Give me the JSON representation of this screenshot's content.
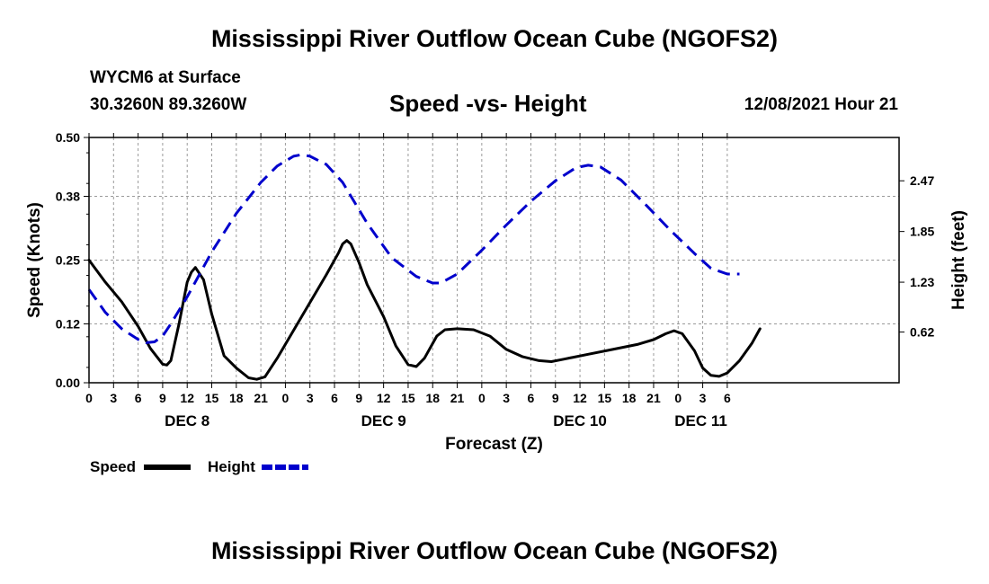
{
  "header": {
    "title": "Mississippi River Outflow Ocean Cube (NGOFS2)",
    "station": "WYCM6 at Surface",
    "coords": "30.3260N  89.3260W",
    "subtitle": "Speed -vs- Height",
    "datetime": "12/08/2021 Hour 21"
  },
  "footer": {
    "title": "Mississippi River Outflow Ocean Cube (NGOFS2)"
  },
  "chart_data": {
    "type": "line",
    "title": "Speed -vs- Height",
    "xlabel": "Forecast (Z)",
    "ylabel_left": "Speed (Knots)",
    "ylabel_right": "Height (feet)",
    "x_range_hours": [
      0,
      99
    ],
    "x_ticks": [
      {
        "h": 0,
        "label": "0"
      },
      {
        "h": 3,
        "label": "3"
      },
      {
        "h": 6,
        "label": "6"
      },
      {
        "h": 9,
        "label": "9"
      },
      {
        "h": 12,
        "label": "12"
      },
      {
        "h": 15,
        "label": "15"
      },
      {
        "h": 18,
        "label": "18"
      },
      {
        "h": 21,
        "label": "21"
      },
      {
        "h": 24,
        "label": "0"
      },
      {
        "h": 27,
        "label": "3"
      },
      {
        "h": 30,
        "label": "6"
      },
      {
        "h": 33,
        "label": "9"
      },
      {
        "h": 36,
        "label": "12"
      },
      {
        "h": 39,
        "label": "15"
      },
      {
        "h": 42,
        "label": "18"
      },
      {
        "h": 45,
        "label": "21"
      },
      {
        "h": 48,
        "label": "0"
      },
      {
        "h": 51,
        "label": "3"
      },
      {
        "h": 54,
        "label": "6"
      },
      {
        "h": 57,
        "label": "9"
      },
      {
        "h": 60,
        "label": "12"
      },
      {
        "h": 63,
        "label": "15"
      },
      {
        "h": 66,
        "label": "18"
      },
      {
        "h": 69,
        "label": "21"
      },
      {
        "h": 72,
        "label": "0"
      },
      {
        "h": 75,
        "label": "3"
      },
      {
        "h": 78,
        "label": "6"
      }
    ],
    "day_labels": [
      {
        "h": 12,
        "label": "DEC 8"
      },
      {
        "h": 36,
        "label": "DEC 9"
      },
      {
        "h": 60,
        "label": "DEC 10"
      },
      {
        "h": 78,
        "label": "DEC 11",
        "anchor": "end"
      }
    ],
    "y_left": {
      "range": [
        0,
        0.5
      ],
      "ticks": [
        "0.00",
        "0.12",
        "0.25",
        "0.38",
        "0.50"
      ]
    },
    "y_right": {
      "range": [
        0,
        3
      ],
      "ticks": [
        "0.62",
        "1.23",
        "1.85",
        "2.47"
      ]
    },
    "grid": true,
    "legend_position": "bottom-left",
    "series": [
      {
        "name": "Speed",
        "axis": "left",
        "style": "solid",
        "color": "#000000",
        "points": [
          [
            0,
            0.25
          ],
          [
            2,
            0.205
          ],
          [
            4,
            0.165
          ],
          [
            6,
            0.115
          ],
          [
            7.5,
            0.07
          ],
          [
            9,
            0.038
          ],
          [
            9.5,
            0.036
          ],
          [
            10,
            0.045
          ],
          [
            11,
            0.12
          ],
          [
            12,
            0.205
          ],
          [
            12.5,
            0.225
          ],
          [
            13,
            0.235
          ],
          [
            14,
            0.21
          ],
          [
            15,
            0.14
          ],
          [
            16.5,
            0.055
          ],
          [
            18,
            0.03
          ],
          [
            19.5,
            0.01
          ],
          [
            20.5,
            0.007
          ],
          [
            21.5,
            0.012
          ],
          [
            23,
            0.05
          ],
          [
            26,
            0.135
          ],
          [
            29,
            0.22
          ],
          [
            30.5,
            0.265
          ],
          [
            31,
            0.283
          ],
          [
            31.5,
            0.29
          ],
          [
            32,
            0.283
          ],
          [
            33,
            0.245
          ],
          [
            34,
            0.2
          ],
          [
            36,
            0.135
          ],
          [
            37.5,
            0.075
          ],
          [
            39,
            0.037
          ],
          [
            40,
            0.033
          ],
          [
            41,
            0.05
          ],
          [
            42.5,
            0.095
          ],
          [
            43.5,
            0.108
          ],
          [
            45,
            0.11
          ],
          [
            47,
            0.108
          ],
          [
            49,
            0.095
          ],
          [
            51,
            0.068
          ],
          [
            53,
            0.053
          ],
          [
            55,
            0.045
          ],
          [
            56.5,
            0.043
          ],
          [
            58,
            0.048
          ],
          [
            61,
            0.058
          ],
          [
            64,
            0.068
          ],
          [
            67,
            0.078
          ],
          [
            69,
            0.088
          ],
          [
            70.5,
            0.1
          ],
          [
            71.5,
            0.106
          ],
          [
            72.5,
            0.1
          ],
          [
            74,
            0.065
          ],
          [
            75,
            0.03
          ],
          [
            76,
            0.015
          ],
          [
            77,
            0.013
          ],
          [
            78,
            0.02
          ],
          [
            79.5,
            0.045
          ],
          [
            81,
            0.08
          ],
          [
            82,
            0.11
          ]
        ]
      },
      {
        "name": "Height",
        "axis": "right",
        "style": "dashed",
        "color": "#0000cc",
        "points": [
          [
            0,
            1.14
          ],
          [
            2,
            0.86
          ],
          [
            4,
            0.66
          ],
          [
            6,
            0.53
          ],
          [
            7,
            0.49
          ],
          [
            8,
            0.5
          ],
          [
            9,
            0.57
          ],
          [
            10,
            0.72
          ],
          [
            12,
            1.05
          ],
          [
            15,
            1.6
          ],
          [
            18,
            2.07
          ],
          [
            21,
            2.45
          ],
          [
            23,
            2.65
          ],
          [
            25,
            2.77
          ],
          [
            26,
            2.79
          ],
          [
            27,
            2.77
          ],
          [
            29,
            2.67
          ],
          [
            31,
            2.45
          ],
          [
            34,
            1.95
          ],
          [
            37,
            1.53
          ],
          [
            40,
            1.3
          ],
          [
            42,
            1.22
          ],
          [
            43,
            1.22
          ],
          [
            45,
            1.33
          ],
          [
            48,
            1.62
          ],
          [
            51,
            1.93
          ],
          [
            54,
            2.22
          ],
          [
            57,
            2.47
          ],
          [
            59.5,
            2.63
          ],
          [
            61,
            2.66
          ],
          [
            62.5,
            2.64
          ],
          [
            65,
            2.48
          ],
          [
            68,
            2.18
          ],
          [
            71,
            1.87
          ],
          [
            74,
            1.58
          ],
          [
            76,
            1.4
          ],
          [
            78,
            1.33
          ],
          [
            79.5,
            1.33
          ]
        ]
      }
    ]
  }
}
